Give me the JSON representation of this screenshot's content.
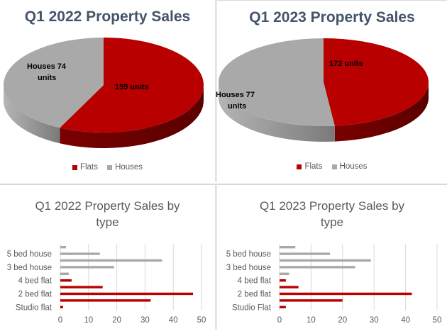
{
  "colors": {
    "flats": "#b80000",
    "houses": "#a9a9a9",
    "flats_dark": "#5a0000",
    "houses_dark": "#7a7a7a",
    "title": "#44546a",
    "grid": "#d9d9d9"
  },
  "chart_data": [
    {
      "type": "pie",
      "title": "Q1 2022 Property Sales",
      "categories": [
        "Flats",
        "Houses"
      ],
      "values": [
        199,
        74
      ],
      "data_labels": [
        "199 units",
        "Houses 74 units"
      ],
      "legend": [
        "Flats",
        "Houses"
      ],
      "legend_position": "bottom",
      "style": "3d"
    },
    {
      "type": "pie",
      "title": "Q1 2023 Property Sales",
      "categories": [
        "Flats",
        "Houses"
      ],
      "values": [
        172,
        77
      ],
      "data_labels": [
        "172 units",
        "Houses 77 units"
      ],
      "legend": [
        "Flats",
        "Houses"
      ],
      "legend_position": "bottom",
      "style": "3d"
    },
    {
      "type": "bar",
      "orientation": "horizontal",
      "title": "Q1 2022 Property Sales by type",
      "categories": [
        "Studio flat",
        "",
        "2 bed flat",
        "",
        "4 bed flat",
        "",
        "3 bed house",
        "",
        "5 bed house",
        ""
      ],
      "values": [
        1,
        32,
        47,
        15,
        4,
        3,
        19,
        36,
        14,
        2
      ],
      "series_color": [
        "flats",
        "flats",
        "flats",
        "flats",
        "flats",
        "houses",
        "houses",
        "houses",
        "houses",
        "houses"
      ],
      "xlim": [
        0,
        50
      ],
      "xticks": [
        0,
        10,
        20,
        30,
        40,
        50
      ],
      "grid": true
    },
    {
      "type": "bar",
      "orientation": "horizontal",
      "title": "Q1 2023 Property Sales by type",
      "categories": [
        "Studio Flat",
        "",
        "2 bed flat",
        "",
        "4 bed flat",
        "",
        "3 bed house",
        "",
        "5 bed house",
        ""
      ],
      "values": [
        2,
        20,
        42,
        6,
        2,
        3,
        24,
        29,
        16,
        5
      ],
      "series_color": [
        "flats",
        "flats",
        "flats",
        "flats",
        "flats",
        "houses",
        "houses",
        "houses",
        "houses",
        "houses"
      ],
      "xlim": [
        0,
        50
      ],
      "xticks": [
        0,
        10,
        20,
        30,
        40,
        50
      ],
      "grid": true
    }
  ],
  "pies": [
    {
      "title": "Q1 2022 Property Sales",
      "label_flats": "199 units",
      "label_houses_1": "Houses 74",
      "label_houses_2": "units",
      "legend_flats": "Flats",
      "legend_houses": "Houses"
    },
    {
      "title": "Q1 2023 Property Sales",
      "label_flats": "172 units",
      "label_houses_1": "Houses 77",
      "label_houses_2": "units",
      "legend_flats": "Flats",
      "legend_houses": "Houses"
    }
  ],
  "bars": [
    {
      "title_line1": "Q1 2022 Property Sales by",
      "title_line2": "type"
    },
    {
      "title_line1": "Q1 2023 Property Sales by",
      "title_line2": "type"
    }
  ]
}
